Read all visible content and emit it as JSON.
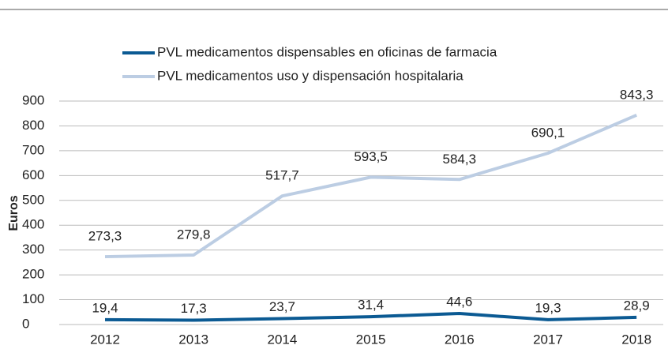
{
  "chart_data": {
    "type": "line",
    "ylabel": "Euros",
    "categories": [
      "2012",
      "2013",
      "2014",
      "2015",
      "2016",
      "2017",
      "2018"
    ],
    "series": [
      {
        "name": "PVL medicamentos dispensables en oficinas de farmacia",
        "color": "#0b5a93",
        "values": [
          19.4,
          17.3,
          23.7,
          31.4,
          44.6,
          19.3,
          28.9
        ],
        "value_labels": [
          "19,4",
          "17,3",
          "23,7",
          "31,4",
          "44,6",
          "19,3",
          "28,9"
        ]
      },
      {
        "name": "PVL medicamentos uso y dispensación hospitalaria",
        "color": "#bccde3",
        "values": [
          273.3,
          279.8,
          517.7,
          593.5,
          584.3,
          690.1,
          843.3
        ],
        "value_labels": [
          "273,3",
          "279,8",
          "517,7",
          "593,5",
          "584,3",
          "690,1",
          "843,3"
        ]
      }
    ],
    "ylim": [
      0,
      900
    ],
    "yticks": [
      0,
      100,
      200,
      300,
      400,
      500,
      600,
      700,
      800,
      900
    ],
    "grid": true,
    "legend": "top"
  }
}
